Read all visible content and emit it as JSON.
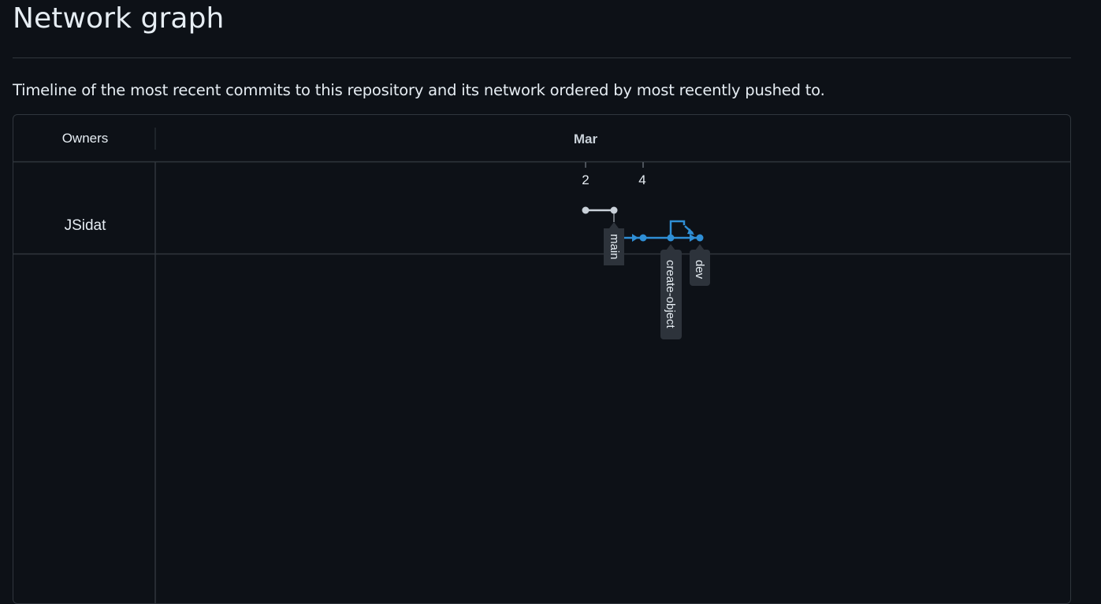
{
  "page": {
    "title": "Network graph",
    "description": "Timeline of the most recent commits to this repository and its network ordered by most recently pushed to."
  },
  "graph": {
    "owners_header": "Owners",
    "month_header": "Mar",
    "day_ticks": [
      "2",
      "4"
    ],
    "owners": [
      "JSidat"
    ],
    "branches": [
      "main",
      "create-object",
      "dev"
    ],
    "colors": {
      "background": "#0d1117",
      "border": "#30363d",
      "main_line": "#c9d1d9",
      "branch_line": "#2f8fd6",
      "label_bg": "#2d333b",
      "text": "#e6edf3",
      "muted_text": "#c9d1d9"
    }
  }
}
